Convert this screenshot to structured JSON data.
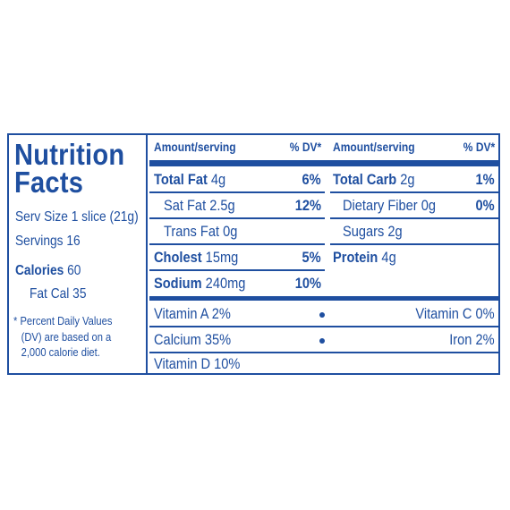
{
  "left": {
    "title_1": "Nutrition",
    "title_2": "Facts",
    "serv_size": "Serv Size 1 slice (21g)",
    "servings": "Servings 16",
    "calories_label": "Calories",
    "calories_value": "60",
    "fat_cal": "Fat Cal 35",
    "footnote_1": "* Percent Daily Values",
    "footnote_2": "(DV) are based on a",
    "footnote_3": "2,000 calorie diet."
  },
  "header": {
    "amount_1": "Amount/serving",
    "dv_1": "% DV*",
    "amount_2": "Amount/serving",
    "dv_2": "% DV*"
  },
  "rows": {
    "total_fat_label": "Total Fat",
    "total_fat_value": "4g",
    "total_fat_dv": "6%",
    "sat_fat": "Sat Fat 2.5g",
    "sat_fat_dv": "12%",
    "trans_fat": "Trans Fat 0g",
    "cholest_label": "Cholest",
    "cholest_value": "15mg",
    "cholest_dv": "5%",
    "sodium_label": "Sodium",
    "sodium_value": "240mg",
    "sodium_dv": "10%",
    "total_carb_label": "Total Carb",
    "total_carb_value": "2g",
    "total_carb_dv": "1%",
    "dietary_fiber": "Dietary Fiber 0g",
    "dietary_fiber_dv": "0%",
    "sugars": "Sugars 2g",
    "protein_label": "Protein",
    "protein_value": "4g"
  },
  "vitamins": {
    "vitamin_a": "Vitamin A 2%",
    "vitamin_c": "Vitamin C 0%",
    "calcium": "Calcium 35%",
    "iron": "Iron 2%",
    "vitamin_d": "Vitamin D 10%"
  },
  "colors": {
    "ink": "#1f4fa0"
  }
}
